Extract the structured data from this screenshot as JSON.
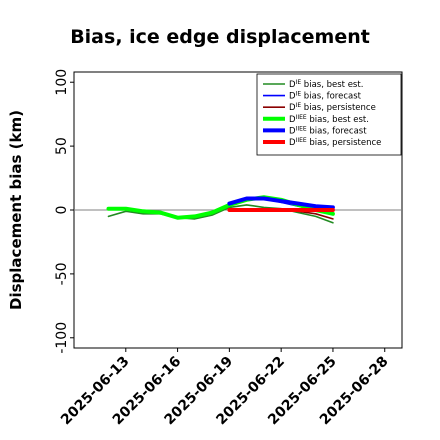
{
  "chart_data": {
    "type": "line",
    "title": "Bias, ice edge displacement",
    "ylabel": "Displacement bias (km)",
    "xlabel": "",
    "ylim": [
      -108,
      108
    ],
    "xlim": [
      "2025-06-10",
      "2025-06-29"
    ],
    "yticks": [
      -100,
      -50,
      0,
      50,
      100
    ],
    "xticks": [
      "2025-06-13",
      "2025-06-16",
      "2025-06-19",
      "2025-06-22",
      "2025-06-25",
      "2025-06-28"
    ],
    "highlight_tick": "2025-06-19",
    "highlight_color": "#228b22",
    "grid": false,
    "legend_position": "top-right",
    "x": [
      "2025-06-12",
      "2025-06-13",
      "2025-06-14",
      "2025-06-15",
      "2025-06-16",
      "2025-06-17",
      "2025-06-18",
      "2025-06-19",
      "2025-06-20",
      "2025-06-21",
      "2025-06-22",
      "2025-06-23",
      "2025-06-24",
      "2025-06-25"
    ],
    "series": [
      {
        "legend": [
          "D",
          "IE",
          " bias, best est."
        ],
        "color": "#228b22",
        "width": 1.6,
        "values": [
          -5,
          -1,
          -3,
          -3,
          -6,
          -7,
          -4,
          2,
          4,
          2,
          1,
          -2,
          -5,
          -10
        ]
      },
      {
        "legend": [
          "D",
          "IE",
          " bias, forecast"
        ],
        "color": "#0000ff",
        "width": 1.6,
        "values": [
          null,
          null,
          null,
          null,
          null,
          null,
          null,
          5,
          9,
          9,
          6,
          3,
          2,
          2
        ]
      },
      {
        "legend": [
          "D",
          "IE",
          " bias, persistence"
        ],
        "color": "#8b0000",
        "width": 1.6,
        "values": [
          null,
          null,
          null,
          null,
          null,
          null,
          null,
          0,
          0,
          0,
          0,
          -1,
          -3,
          -7
        ]
      },
      {
        "legend": [
          "D",
          "IIEE",
          " bias, best est."
        ],
        "color": "#00ff00",
        "width": 4,
        "values": [
          1,
          1,
          -1,
          -2,
          -6,
          -5,
          -2,
          4,
          8,
          10,
          8,
          4,
          0,
          -3
        ]
      },
      {
        "legend": [
          "D",
          "IIEE",
          " bias, forecast"
        ],
        "color": "#0000ff",
        "width": 4,
        "values": [
          null,
          null,
          null,
          null,
          null,
          null,
          null,
          5,
          9,
          9,
          7,
          5,
          3,
          2
        ]
      },
      {
        "legend": [
          "D",
          "IIEE",
          " bias, persistence"
        ],
        "color": "#ff0000",
        "width": 4,
        "values": [
          null,
          null,
          null,
          null,
          null,
          null,
          null,
          0,
          0,
          0,
          0,
          0,
          0,
          0
        ]
      }
    ]
  }
}
